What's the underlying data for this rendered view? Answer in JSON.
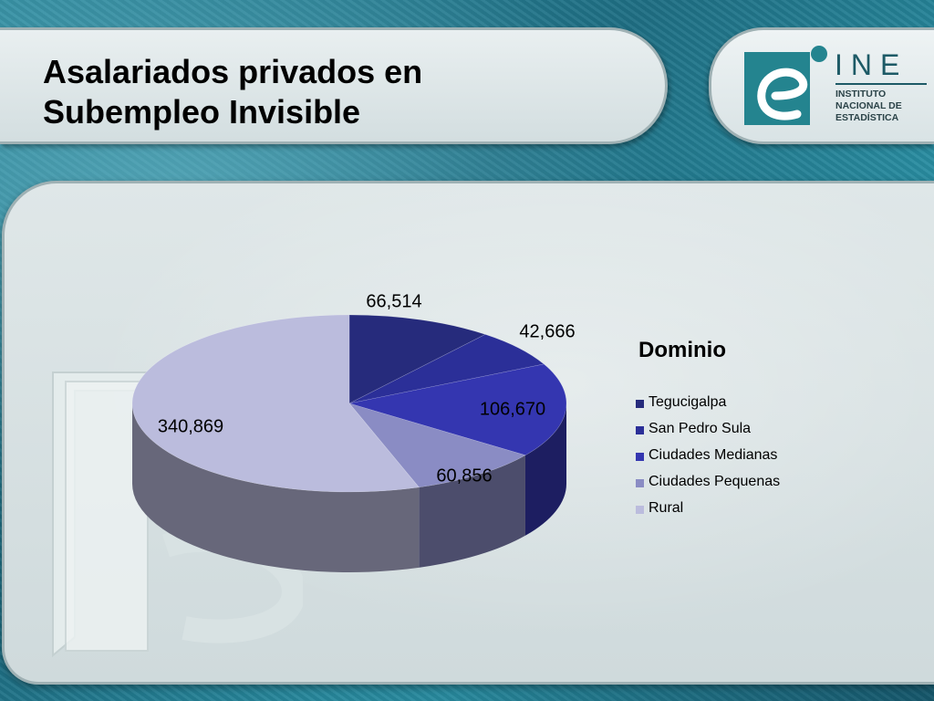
{
  "slide": {
    "title_line1": "Asalariados privados en",
    "title_line2": "Subempleo Invisible"
  },
  "logo": {
    "acronym": "INE",
    "name_line1": "INSTITUTO",
    "name_line2": "NACIONAL DE",
    "name_line3": "ESTADÍSTICA",
    "colors": {
      "mark": "#24848f",
      "text": "#1d5a66"
    }
  },
  "chart_data": {
    "type": "pie",
    "legend_title": "Dominio",
    "legend_position": "right",
    "categories": [
      "Tegucigalpa",
      "San Pedro Sula",
      "Ciudades Medianas",
      "Ciudades Pequenas",
      "Rural"
    ],
    "values": [
      66514,
      42666,
      106670,
      60856,
      340869
    ],
    "value_labels": [
      "66,514",
      "42,666",
      "106,670",
      "60,856",
      "340,869"
    ],
    "colors": [
      "#262b7c",
      "#2b2f98",
      "#3436b0",
      "#8a8cc4",
      "#bbbcdd"
    ]
  }
}
